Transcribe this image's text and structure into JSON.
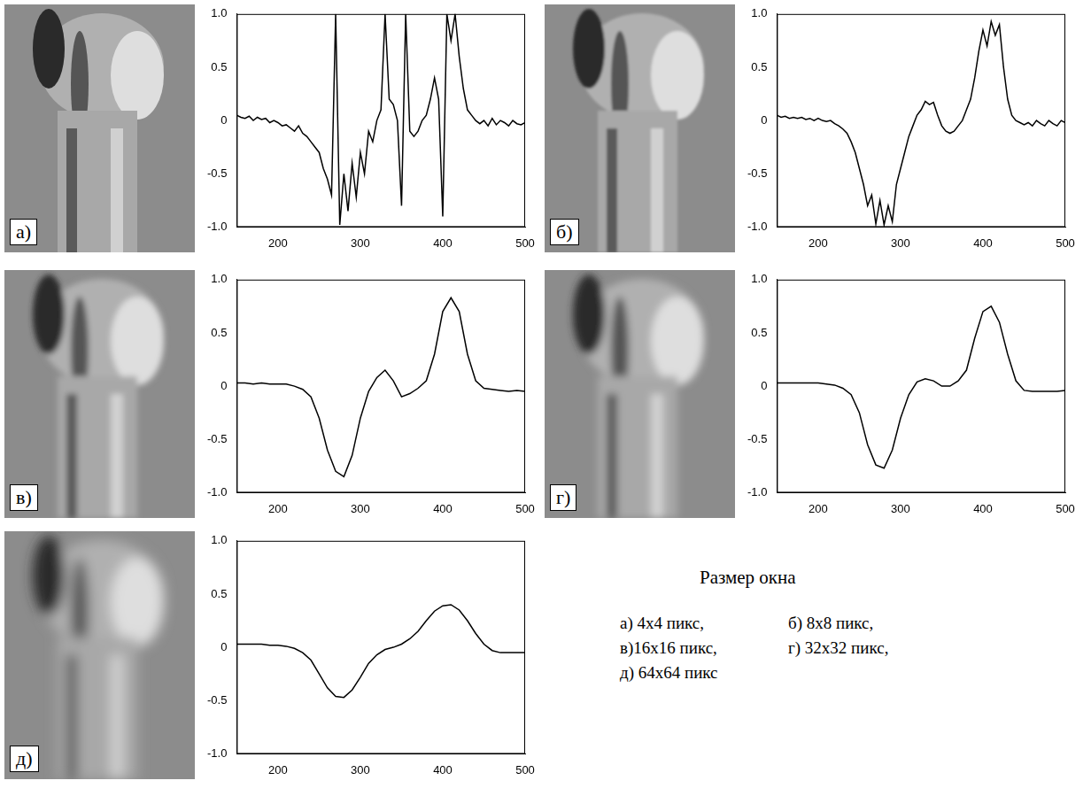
{
  "chart_data": [
    {
      "type": "line",
      "label": "а)",
      "color": "#000000",
      "grid": false,
      "xlim": [
        150,
        500
      ],
      "ylim": [
        -1,
        1
      ],
      "xticks": [
        200,
        300,
        400,
        500
      ],
      "yticks": [
        {
          "value": 1,
          "label": "1.0"
        },
        0.5,
        0,
        -0.5,
        {
          "value": -1,
          "label": "-1.0"
        }
      ],
      "x": [
        150,
        155,
        160,
        165,
        170,
        175,
        180,
        185,
        190,
        195,
        200,
        205,
        210,
        215,
        220,
        225,
        230,
        235,
        240,
        245,
        250,
        255,
        260,
        265,
        270,
        275,
        280,
        285,
        290,
        295,
        300,
        305,
        310,
        315,
        320,
        325,
        330,
        335,
        340,
        345,
        350,
        355,
        360,
        365,
        370,
        375,
        380,
        385,
        390,
        395,
        400,
        405,
        410,
        415,
        420,
        425,
        430,
        435,
        440,
        445,
        450,
        455,
        460,
        465,
        470,
        475,
        480,
        485,
        490,
        495,
        500
      ],
      "values": [
        0.05,
        0.03,
        0.02,
        0.04,
        0.0,
        0.03,
        0.01,
        0.02,
        -0.02,
        0.0,
        -0.02,
        -0.05,
        -0.04,
        -0.07,
        -0.1,
        -0.05,
        -0.12,
        -0.15,
        -0.2,
        -0.25,
        -0.3,
        -0.45,
        -0.55,
        -0.7,
        1.0,
        -0.98,
        -0.5,
        -0.85,
        -0.4,
        -0.72,
        -0.3,
        -0.5,
        -0.1,
        -0.2,
        0.0,
        0.1,
        1.0,
        0.2,
        0.15,
        0.0,
        -0.8,
        1.0,
        -0.1,
        -0.15,
        -0.1,
        0.0,
        0.05,
        0.2,
        0.4,
        0.2,
        -0.9,
        1.0,
        0.75,
        1.0,
        0.6,
        0.3,
        0.1,
        0.05,
        0.0,
        -0.03,
        0.0,
        -0.05,
        0.02,
        -0.04,
        0.0,
        -0.02,
        -0.05,
        0.0,
        -0.03,
        -0.04,
        -0.02
      ]
    },
    {
      "type": "line",
      "label": "б)",
      "color": "#000000",
      "grid": false,
      "xlim": [
        150,
        500
      ],
      "ylim": [
        -1,
        1
      ],
      "xticks": [
        200,
        300,
        400,
        500
      ],
      "yticks": [
        {
          "value": 1,
          "label": "1.0"
        },
        0.5,
        0,
        -0.5,
        {
          "value": -1,
          "label": "-1.0"
        }
      ],
      "x": [
        150,
        155,
        160,
        165,
        170,
        175,
        180,
        185,
        190,
        195,
        200,
        205,
        210,
        215,
        220,
        225,
        230,
        235,
        240,
        245,
        250,
        255,
        260,
        265,
        270,
        275,
        280,
        285,
        290,
        295,
        300,
        305,
        310,
        315,
        320,
        325,
        330,
        335,
        340,
        345,
        350,
        355,
        360,
        365,
        370,
        375,
        380,
        385,
        390,
        395,
        400,
        405,
        410,
        415,
        420,
        425,
        430,
        435,
        440,
        445,
        450,
        455,
        460,
        465,
        470,
        475,
        480,
        485,
        490,
        495,
        500
      ],
      "values": [
        0.05,
        0.03,
        0.04,
        0.02,
        0.03,
        0.02,
        0.03,
        0.01,
        0.02,
        0.0,
        0.02,
        0.0,
        -0.01,
        0.0,
        -0.03,
        -0.05,
        -0.08,
        -0.12,
        -0.2,
        -0.3,
        -0.45,
        -0.6,
        -0.8,
        -0.7,
        -0.97,
        -0.75,
        -0.98,
        -0.8,
        -0.95,
        -0.6,
        -0.45,
        -0.3,
        -0.15,
        -0.05,
        0.05,
        0.1,
        0.18,
        0.15,
        0.17,
        0.05,
        -0.05,
        -0.1,
        -0.12,
        -0.1,
        -0.05,
        0.0,
        0.1,
        0.2,
        0.4,
        0.65,
        0.85,
        0.7,
        0.93,
        0.8,
        0.9,
        0.5,
        0.2,
        0.05,
        0.0,
        -0.02,
        -0.04,
        -0.02,
        -0.05,
        0.0,
        -0.03,
        -0.05,
        0.0,
        -0.03,
        -0.05,
        0.0,
        -0.02
      ]
    },
    {
      "type": "line",
      "label": "в)",
      "color": "#000000",
      "grid": false,
      "xlim": [
        150,
        500
      ],
      "ylim": [
        -1,
        1
      ],
      "xticks": [
        200,
        300,
        400,
        500
      ],
      "yticks": [
        {
          "value": 1,
          "label": "1.0"
        },
        0.5,
        0,
        -0.5,
        {
          "value": -1,
          "label": "-1.0"
        }
      ],
      "x": [
        150,
        160,
        170,
        180,
        190,
        200,
        210,
        220,
        230,
        240,
        250,
        260,
        270,
        280,
        290,
        300,
        310,
        320,
        330,
        340,
        350,
        360,
        370,
        380,
        390,
        400,
        410,
        420,
        430,
        440,
        450,
        460,
        470,
        480,
        490,
        500
      ],
      "values": [
        0.03,
        0.03,
        0.02,
        0.03,
        0.02,
        0.02,
        0.02,
        0.0,
        -0.03,
        -0.1,
        -0.3,
        -0.6,
        -0.8,
        -0.85,
        -0.65,
        -0.3,
        -0.05,
        0.08,
        0.15,
        0.05,
        -0.1,
        -0.07,
        -0.02,
        0.05,
        0.3,
        0.7,
        0.83,
        0.7,
        0.3,
        0.05,
        -0.02,
        -0.03,
        -0.04,
        -0.05,
        -0.04,
        -0.05
      ]
    },
    {
      "type": "line",
      "label": "г)",
      "color": "#000000",
      "grid": false,
      "xlim": [
        150,
        500
      ],
      "ylim": [
        -1,
        1
      ],
      "xticks": [
        200,
        300,
        400,
        500
      ],
      "yticks": [
        {
          "value": 1,
          "label": "1.0"
        },
        0.5,
        0,
        -0.5,
        {
          "value": -1,
          "label": "-1.0"
        }
      ],
      "x": [
        150,
        160,
        170,
        180,
        190,
        200,
        210,
        220,
        230,
        240,
        250,
        260,
        270,
        280,
        290,
        300,
        310,
        320,
        330,
        340,
        350,
        360,
        370,
        380,
        390,
        400,
        410,
        420,
        430,
        440,
        450,
        460,
        470,
        480,
        490,
        500
      ],
      "values": [
        0.03,
        0.03,
        0.03,
        0.03,
        0.03,
        0.03,
        0.02,
        0.01,
        -0.02,
        -0.08,
        -0.25,
        -0.55,
        -0.74,
        -0.77,
        -0.6,
        -0.3,
        -0.08,
        0.04,
        0.07,
        0.05,
        0.0,
        0.0,
        0.05,
        0.15,
        0.45,
        0.7,
        0.75,
        0.6,
        0.3,
        0.05,
        -0.04,
        -0.05,
        -0.05,
        -0.05,
        -0.05,
        -0.04
      ]
    },
    {
      "type": "line",
      "label": "д)",
      "color": "#000000",
      "grid": false,
      "xlim": [
        150,
        500
      ],
      "ylim": [
        -1,
        1
      ],
      "xticks": [
        200,
        300,
        400,
        500
      ],
      "yticks": [
        {
          "value": 1,
          "label": "1.0"
        },
        0.5,
        0,
        -0.5,
        {
          "value": -1,
          "label": "-1.0"
        }
      ],
      "x": [
        150,
        160,
        170,
        180,
        190,
        200,
        210,
        220,
        230,
        240,
        250,
        260,
        270,
        280,
        290,
        300,
        310,
        320,
        330,
        340,
        350,
        360,
        370,
        380,
        390,
        400,
        410,
        420,
        430,
        440,
        450,
        460,
        470,
        480,
        490,
        500
      ],
      "values": [
        0.03,
        0.03,
        0.03,
        0.03,
        0.02,
        0.02,
        0.01,
        -0.01,
        -0.05,
        -0.12,
        -0.25,
        -0.38,
        -0.46,
        -0.47,
        -0.4,
        -0.28,
        -0.15,
        -0.07,
        -0.02,
        0.0,
        0.03,
        0.08,
        0.15,
        0.25,
        0.34,
        0.39,
        0.4,
        0.35,
        0.25,
        0.13,
        0.03,
        -0.03,
        -0.05,
        -0.05,
        -0.05,
        -0.05
      ]
    }
  ],
  "annotation": {
    "title": "Размер окна",
    "items": [
      "а) 4x4 пикс,",
      "б) 8x8 пикс,",
      "в)16x16 пикс,",
      "г) 32x32 пикс,",
      "д) 64x64 пикс"
    ]
  }
}
